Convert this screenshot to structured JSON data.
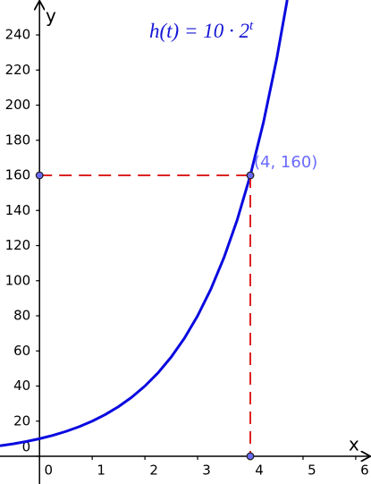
{
  "chart_data": {
    "type": "line",
    "x_label": "x",
    "y_label": "y",
    "formula": {
      "text": "h(t) = 10 · 2",
      "superscript": "t"
    },
    "x": [
      -0.75,
      -0.5,
      -0.25,
      0,
      0.25,
      0.5,
      0.75,
      1,
      1.25,
      1.5,
      1.75,
      2,
      2.25,
      2.5,
      2.75,
      3,
      3.25,
      3.5,
      3.75,
      4,
      4.25,
      4.5,
      4.7
    ],
    "series": [
      {
        "name": "h(t)",
        "color": "#0a0ae0",
        "values": [
          5.95,
          7.07,
          8.41,
          10,
          11.89,
          14.14,
          16.82,
          20,
          23.78,
          28.28,
          33.64,
          40,
          47.57,
          56.57,
          67.27,
          80,
          95.14,
          113.14,
          134.54,
          160,
          190.27,
          226.27,
          259.93
        ]
      }
    ],
    "highlight": {
      "x": 4,
      "y": 160,
      "label": "(4, 160)",
      "color": "#dd2222"
    },
    "xlim": [
      -0.75,
      6.29
    ],
    "ylim": [
      -15.8,
      259.9
    ],
    "xticks": [
      0,
      1,
      2,
      3,
      4,
      5,
      6
    ],
    "yticks": [
      0,
      20,
      40,
      60,
      80,
      100,
      120,
      140,
      160,
      180,
      200,
      220,
      240
    ]
  }
}
